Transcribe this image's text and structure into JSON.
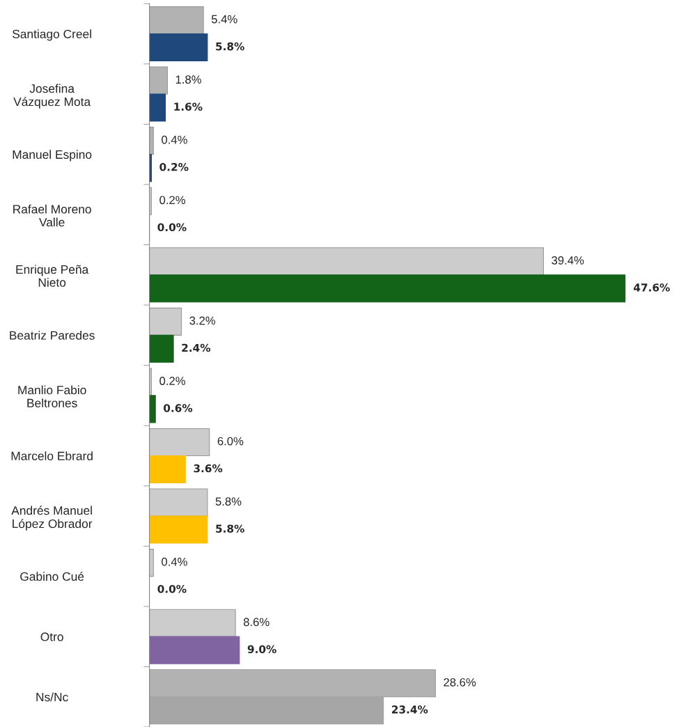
{
  "chart_data": {
    "type": "bar",
    "orientation": "horizontal",
    "data_labels": true,
    "grid": false,
    "legend": false,
    "categories": [
      "Santiago Creel",
      "Josefina\nVázquez Mota",
      "Manuel Espino",
      "Rafael Moreno\nValle",
      "Enrique Peña\nNieto",
      "Beatriz Paredes",
      "Manlio Fabio\nBeltrones",
      "Marcelo Ebrard",
      "Andrés Manuel\nLópez Obrador",
      "Gabino Cué",
      "Otro",
      "Ns/Nc"
    ],
    "series": [
      {
        "colors": [
          "#b2b2b2",
          "#b2b2b2",
          "#b2b2b2",
          "#cccccc",
          "#cccccc",
          "#cccccc",
          "#cccccc",
          "#cccccc",
          "#cccccc",
          "#cccccc",
          "#cccccc",
          "#b2b2b2"
        ],
        "values": [
          5.4,
          1.8,
          0.4,
          0.2,
          39.4,
          3.2,
          0.2,
          6.0,
          5.8,
          0.4,
          8.6,
          28.6
        ],
        "value_labels": [
          "5.4%",
          "1.8%",
          "0.4%",
          "0.2%",
          "39.4%",
          "3.2%",
          "0.2%",
          "6.0%",
          "5.8%",
          "0.4%",
          "8.6%",
          "28.6%"
        ]
      },
      {
        "colors": [
          "#1f497d",
          "#1f497d",
          "#1f497d",
          "#1f497d",
          "#136318",
          "#136318",
          "#136318",
          "#ffc000",
          "#ffc000",
          "#ffc000",
          "#8064a2",
          "#a6a6a6"
        ],
        "values": [
          5.8,
          1.6,
          0.2,
          0.0,
          47.6,
          2.4,
          0.6,
          3.6,
          5.8,
          0.0,
          9.0,
          23.4
        ],
        "value_labels": [
          "5.8%",
          "1.6%",
          "0.2%",
          "0.0%",
          "47.6%",
          "2.4%",
          "0.6%",
          "3.6%",
          "5.8%",
          "0.0%",
          "9.0%",
          "23.4%"
        ]
      }
    ]
  }
}
